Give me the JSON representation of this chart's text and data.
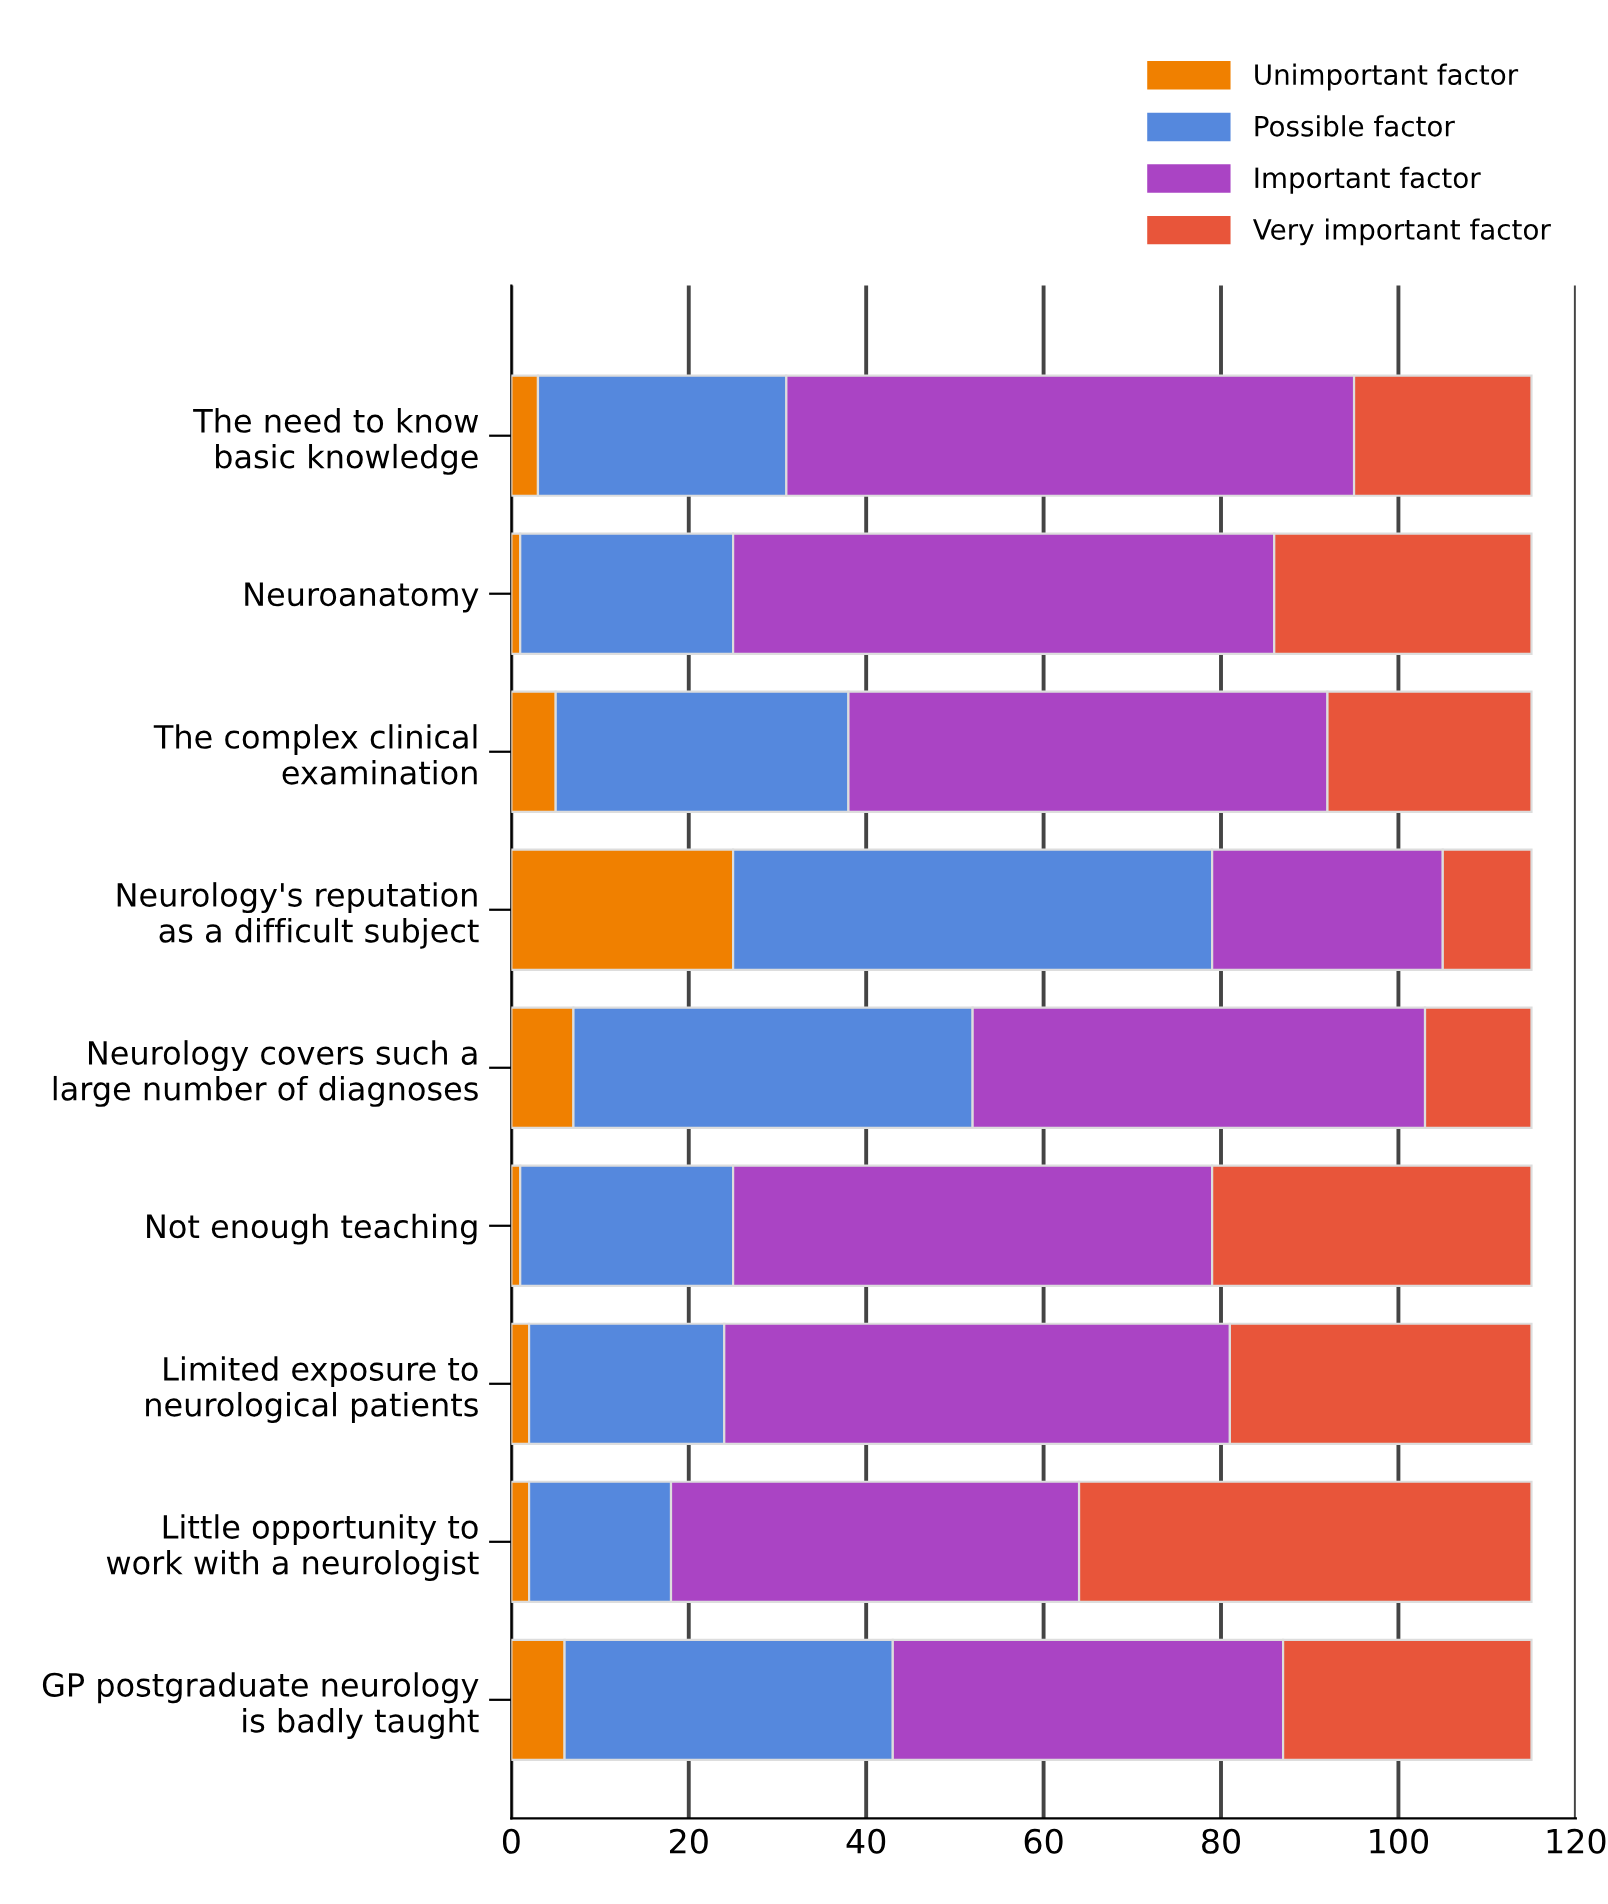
{
  "chart_data": {
    "type": "bar",
    "orientation": "horizontal",
    "stacked": true,
    "categories": [
      "The need to know\nbasic knowledge",
      "Neuroanatomy",
      "The complex clinical\nexamination",
      "Neurology's reputation\nas a difficult subject",
      "Neurology covers such a\nlarge number of diagnoses",
      "Not enough teaching",
      "Limited exposure to\nneurological patients",
      "Little opportunity to\nwork with a neurologist",
      "GP postgraduate neurology\nis badly taught"
    ],
    "series": [
      {
        "name": "Unimportant factor",
        "color": "#f08000",
        "values": [
          3,
          1,
          5,
          25,
          7,
          1,
          2,
          2,
          6
        ]
      },
      {
        "name": "Possible factor",
        "color": "#5588dd",
        "values": [
          28,
          24,
          33,
          54,
          45,
          24,
          22,
          16,
          37
        ]
      },
      {
        "name": "Important factor",
        "color": "#aa44c4",
        "values": [
          64,
          61,
          54,
          26,
          51,
          54,
          57,
          46,
          44
        ]
      },
      {
        "name": "Very important factor",
        "color": "#e8553a",
        "values": [
          20,
          29,
          23,
          10,
          12,
          36,
          34,
          51,
          28
        ]
      }
    ],
    "xlim": [
      0,
      120
    ],
    "xticks": [
      0,
      20,
      40,
      60,
      80,
      100,
      120
    ],
    "grid": "x",
    "legend": "top right"
  }
}
